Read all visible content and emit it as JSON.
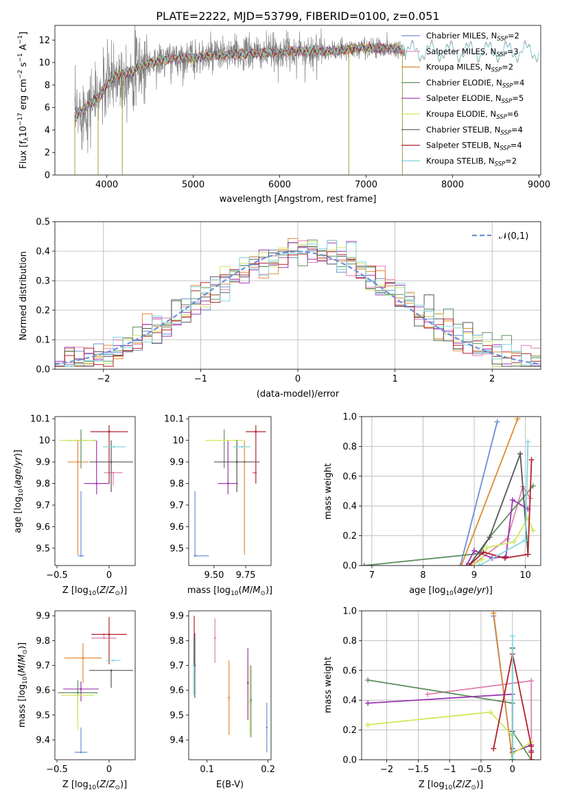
{
  "title": "PLATE=2222, MJD=53799, FIBERID=0100, z=0.051",
  "models": [
    {
      "key": "chabrier_miles",
      "label": "Chabrier MILES, N",
      "sub": "SSP",
      "suffix": "=2",
      "color": "#6a8fd6"
    },
    {
      "key": "salpeter_miles",
      "label": "Salpeter MILES, N",
      "sub": "SSP",
      "suffix": "=3",
      "color": "#e07fb0"
    },
    {
      "key": "kroupa_miles",
      "label": "Kroupa MILES, N",
      "sub": "SSP",
      "suffix": "=2",
      "color": "#e08a33"
    },
    {
      "key": "chabrier_elodie",
      "label": "Chabrier ELODIE, N",
      "sub": "SSP",
      "suffix": "=4",
      "color": "#5e8f5e"
    },
    {
      "key": "salpeter_elodie",
      "label": "Salpeter ELODIE, N",
      "sub": "SSP",
      "suffix": "=5",
      "color": "#9b35b0"
    },
    {
      "key": "kroupa_elodie",
      "label": "Kroupa ELODIE, N",
      "sub": "SSP",
      "suffix": "=6",
      "color": "#cfe85a"
    },
    {
      "key": "chabrier_stelib",
      "label": "Chabrier STELIB, N",
      "sub": "SSP",
      "suffix": "=4",
      "color": "#555555"
    },
    {
      "key": "salpeter_stelib",
      "label": "Salpeter STELIB, N",
      "sub": "SSP",
      "suffix": "=4",
      "color": "#b0202a"
    },
    {
      "key": "kroupa_stelib",
      "label": "Kroupa STELIB, N",
      "sub": "SSP",
      "suffix": "=2",
      "color": "#7fd6dc"
    }
  ],
  "chart_data": [
    {
      "id": "spectrum",
      "type": "line",
      "xlabel": "wavelength [Angstrom, rest frame]",
      "ylabel": "Flux [f",
      "xlim": [
        3400,
        9020
      ],
      "ylim": [
        0,
        13.3
      ],
      "xticks": [
        4000,
        5000,
        6000,
        7000,
        8000,
        9000
      ],
      "yticks": [
        0,
        2,
        4,
        6,
        8,
        10,
        12
      ],
      "grid": false,
      "legend": "right",
      "data_color": "#808080",
      "continuum": {
        "x": [
          3630,
          3700,
          3800,
          3900,
          4000,
          4100,
          4200,
          4300,
          4400,
          4500,
          4600,
          4700,
          4800,
          4900,
          5000,
          5200,
          5400,
          5600,
          5800,
          6000,
          6200,
          6400,
          6600,
          6800,
          7000,
          7200,
          7400,
          7600,
          7800,
          8000,
          8200,
          8400,
          8600,
          8800,
          9000
        ],
        "y": [
          5.2,
          5.6,
          6.3,
          6.9,
          8.0,
          8.8,
          9.0,
          9.2,
          9.6,
          10.0,
          10.1,
          10.3,
          10.4,
          10.4,
          10.4,
          10.6,
          10.7,
          10.8,
          10.8,
          10.9,
          11.0,
          11.0,
          11.0,
          11.2,
          11.3,
          11.3,
          11.2,
          11.2,
          11.2,
          11.1,
          11.1,
          11.0,
          11.0,
          11.0,
          11.0
        ]
      }
    },
    {
      "id": "residuals",
      "type": "bar",
      "xlabel": "(data-model)/error",
      "ylabel": "Normed distribution",
      "xlim": [
        -2.5,
        2.5
      ],
      "ylim": [
        0,
        0.5
      ],
      "xticks": [
        -2,
        -1,
        0,
        1,
        2
      ],
      "yticks": [
        0.0,
        0.1,
        0.2,
        0.3,
        0.4,
        0.5
      ],
      "grid": true,
      "legend": "top-right",
      "gauss_label": "(0,1)",
      "bin_width": 0.1
    },
    {
      "id": "age_vs_Z",
      "type": "scatter",
      "xlabel": "Z [log",
      "ylabel": "age  [log",
      "xlim": [
        -0.52,
        0.25
      ],
      "ylim": [
        9.42,
        10.11
      ],
      "xticks": [
        -0.5,
        0.0
      ],
      "yticks": [
        9.5,
        9.6,
        9.7,
        9.8,
        9.9,
        10.0,
        10.1
      ],
      "points": [
        {
          "model": "chabrier_miles",
          "x": -0.27,
          "y": 9.465,
          "xerr": 0.03,
          "yerr_lo": 0.0,
          "yerr_hi": 0.3
        },
        {
          "model": "salpeter_miles",
          "x": 0.04,
          "y": 9.85,
          "xerr": 0.09,
          "yerr_lo": 0.06,
          "yerr_hi": 0.0
        },
        {
          "model": "kroupa_miles",
          "x": -0.3,
          "y": 9.9,
          "xerr": 0.1,
          "yerr_lo": 0.43,
          "yerr_hi": 0.1
        },
        {
          "model": "chabrier_elodie",
          "x": -0.27,
          "y": 10.0,
          "xerr": 0.14,
          "yerr_lo": 0.13,
          "yerr_hi": 0.05
        },
        {
          "model": "salpeter_elodie",
          "x": -0.12,
          "y": 9.8,
          "xerr": 0.12,
          "yerr_lo": 0.05,
          "yerr_hi": 0.2
        },
        {
          "model": "kroupa_elodie",
          "x": -0.31,
          "y": 10.0,
          "xerr": 0.17,
          "yerr_lo": 0.0,
          "yerr_hi": 0.0
        },
        {
          "model": "chabrier_stelib",
          "x": 0.02,
          "y": 9.9,
          "xerr": 0.21,
          "yerr_lo": 0.14,
          "yerr_hi": 0.1
        },
        {
          "model": "salpeter_stelib",
          "x": 0.0,
          "y": 10.04,
          "xerr": 0.18,
          "yerr_lo": 0.24,
          "yerr_hi": 0.03
        },
        {
          "model": "kroupa_stelib",
          "x": 0.05,
          "y": 9.97,
          "xerr": 0.11,
          "yerr_lo": 0.0,
          "yerr_hi": 0.0
        }
      ]
    },
    {
      "id": "age_vs_mass",
      "type": "scatter",
      "xlabel": "mass [log",
      "ylabel": "",
      "xlim": [
        9.3,
        9.95
      ],
      "ylim": [
        9.42,
        10.11
      ],
      "xticks": [
        9.5,
        9.75
      ],
      "xtick_labels": [
        "9.50",
        "9.75"
      ],
      "yticks": [
        9.5,
        9.6,
        9.7,
        9.8,
        9.9,
        10.0,
        10.1
      ],
      "points": [
        {
          "model": "chabrier_miles",
          "x": 9.35,
          "y": 9.465,
          "xerr_lo": 0.01,
          "xerr_hi": 0.11,
          "yerr_lo": 0.0,
          "yerr_hi": 0.3
        },
        {
          "model": "salpeter_miles",
          "x": 9.82,
          "y": 9.85,
          "xerr": 0.02,
          "yerr_lo": 0.0,
          "yerr_hi": 0.0
        },
        {
          "model": "kroupa_miles",
          "x": 9.74,
          "y": 9.9,
          "xerr": 0.0,
          "yerr_lo": 0.43,
          "yerr_hi": 0.1
        },
        {
          "model": "chabrier_elodie",
          "x": 9.58,
          "y": 10.0,
          "xerr": 0.0,
          "yerr_lo": 0.13,
          "yerr_hi": 0.05
        },
        {
          "model": "salpeter_elodie",
          "x": 9.61,
          "y": 9.8,
          "xerr": 0.08,
          "yerr_lo": 0.05,
          "yerr_hi": 0.2
        },
        {
          "model": "kroupa_elodie",
          "x": 9.58,
          "y": 10.0,
          "xerr": 0.15,
          "yerr_lo": 0.0,
          "yerr_hi": 0.0
        },
        {
          "model": "chabrier_stelib",
          "x": 9.68,
          "y": 9.9,
          "xerr": 0.18,
          "yerr_lo": 0.14,
          "yerr_hi": 0.1
        },
        {
          "model": "salpeter_stelib",
          "x": 9.83,
          "y": 10.04,
          "xerr": 0.08,
          "yerr_lo": 0.24,
          "yerr_hi": 0.03
        },
        {
          "model": "kroupa_stelib",
          "x": 9.72,
          "y": 9.97,
          "xerr": 0.07,
          "yerr_lo": 0.0,
          "yerr_hi": 0.0
        }
      ]
    },
    {
      "id": "weight_vs_age",
      "type": "line",
      "xlabel": "age  [log",
      "ylabel": "mass weight",
      "xlim": [
        6.8,
        10.3
      ],
      "ylim": [
        0,
        1.0
      ],
      "xticks": [
        7,
        8,
        9,
        10
      ],
      "yticks": [
        0.0,
        0.2,
        0.4,
        0.6,
        0.8,
        1.0
      ],
      "grid": true,
      "series": [
        {
          "model": "chabrier_miles",
          "x": [
            8.73,
            9.45
          ],
          "y": [
            0.0,
            0.965
          ]
        },
        {
          "model": "salpeter_miles",
          "x": [
            8.95,
            9.65,
            9.95,
            10.1
          ],
          "y": [
            0.0,
            0.18,
            0.53,
            0.45
          ]
        },
        {
          "model": "kroupa_miles",
          "x": [
            8.75,
            9.85
          ],
          "y": [
            0.0,
            0.985
          ]
        },
        {
          "model": "chabrier_elodie",
          "x": [
            6.85,
            9.1,
            9.3,
            10.15
          ],
          "y": [
            0.0,
            0.08,
            0.19,
            0.535
          ]
        },
        {
          "model": "salpeter_elodie",
          "x": [
            8.85,
            9.0,
            9.35,
            9.62,
            9.75,
            10.05
          ],
          "y": [
            0.0,
            0.1,
            0.05,
            0.06,
            0.44,
            0.38
          ]
        },
        {
          "model": "kroupa_elodie",
          "x": [
            8.95,
            9.15,
            9.25,
            9.78,
            10.05,
            10.15
          ],
          "y": [
            0.0,
            0.04,
            0.12,
            0.16,
            0.32,
            0.235
          ]
        },
        {
          "model": "chabrier_stelib",
          "x": [
            8.9,
            9.3,
            9.9,
            10.05
          ],
          "y": [
            0.0,
            0.19,
            0.75,
            0.075
          ]
        },
        {
          "model": "salpeter_stelib",
          "x": [
            8.9,
            9.18,
            9.6,
            10.05,
            10.12
          ],
          "y": [
            0.0,
            0.09,
            0.05,
            0.075,
            0.71
          ]
        },
        {
          "model": "kroupa_stelib",
          "x": [
            9.1,
            10.0,
            10.05
          ],
          "y": [
            0.0,
            0.17,
            0.83
          ]
        }
      ]
    },
    {
      "id": "mass_vs_Z",
      "type": "scatter",
      "xlabel": "Z [log",
      "ylabel": "mass [log",
      "xlim": [
        -0.52,
        0.25
      ],
      "ylim": [
        9.32,
        9.92
      ],
      "xticks": [
        -0.5,
        0.0
      ],
      "yticks": [
        9.4,
        9.5,
        9.6,
        9.7,
        9.8,
        9.9
      ],
      "points": [
        {
          "model": "chabrier_miles",
          "x": -0.27,
          "y": 9.35,
          "xerr": 0.06,
          "yerr_lo": 0.0,
          "yerr_hi": 0.1
        },
        {
          "model": "salpeter_miles",
          "x": -0.05,
          "y": 9.81,
          "xerr": 0.12,
          "yerr_lo": 0.0,
          "yerr_hi": 0.02
        },
        {
          "model": "kroupa_miles",
          "x": -0.25,
          "y": 9.73,
          "xerr": 0.18,
          "yerr_lo": 0.1,
          "yerr_hi": 0.06
        },
        {
          "model": "chabrier_elodie",
          "x": -0.3,
          "y": 9.59,
          "xerr": 0.19,
          "yerr_lo": 0.1,
          "yerr_hi": 0.05
        },
        {
          "model": "salpeter_elodie",
          "x": -0.27,
          "y": 9.605,
          "xerr": 0.17,
          "yerr_lo": 0.05,
          "yerr_hi": 0.03
        },
        {
          "model": "kroupa_elodie",
          "x": -0.3,
          "y": 9.58,
          "xerr": 0.16,
          "yerr_lo": 0.14,
          "yerr_hi": 0.0
        },
        {
          "model": "chabrier_stelib",
          "x": 0.02,
          "y": 9.68,
          "xerr": 0.21,
          "yerr_lo": 0.07,
          "yerr_hi": 0.0
        },
        {
          "model": "salpeter_stelib",
          "x": 0.0,
          "y": 9.825,
          "xerr": 0.17,
          "yerr_lo": 0.12,
          "yerr_hi": 0.07
        },
        {
          "model": "kroupa_stelib",
          "x": 0.04,
          "y": 9.72,
          "xerr": 0.07,
          "yerr_lo": 0.0,
          "yerr_hi": 0.0
        }
      ]
    },
    {
      "id": "mass_vs_ebv",
      "type": "scatter",
      "xlabel": "E(B-V)",
      "ylabel": "",
      "xlim": [
        0.07,
        0.205
      ],
      "ylim": [
        9.32,
        9.92
      ],
      "xticks": [
        0.1,
        0.2
      ],
      "yticks": [
        9.4,
        9.5,
        9.6,
        9.7,
        9.8,
        9.9
      ],
      "points": [
        {
          "model": "chabrier_miles",
          "x": 0.198,
          "y": 9.45,
          "yerr_lo": 0.1,
          "yerr_hi": 0.1
        },
        {
          "model": "salpeter_miles",
          "x": 0.113,
          "y": 9.81,
          "yerr_lo": 0.1,
          "yerr_hi": 0.08
        },
        {
          "model": "kroupa_miles",
          "x": 0.136,
          "y": 9.57,
          "yerr_lo": 0.15,
          "yerr_hi": 0.15
        },
        {
          "model": "chabrier_elodie",
          "x": 0.172,
          "y": 9.56,
          "yerr_lo": 0.15,
          "yerr_hi": 0.14
        },
        {
          "model": "salpeter_elodie",
          "x": 0.167,
          "y": 9.63,
          "yerr_lo": 0.15,
          "yerr_hi": 0.14
        },
        {
          "model": "kroupa_elodie",
          "x": 0.17,
          "y": 9.55,
          "yerr_lo": 0.13,
          "yerr_hi": 0.15
        },
        {
          "model": "chabrier_stelib",
          "x": 0.08,
          "y": 9.7,
          "yerr_lo": 0.13,
          "yerr_hi": 0.13
        },
        {
          "model": "salpeter_stelib",
          "x": 0.079,
          "y": 9.8,
          "yerr_lo": 0.1,
          "yerr_hi": 0.1
        },
        {
          "model": "kroupa_stelib",
          "x": 0.078,
          "y": 9.7,
          "yerr_lo": 0.12,
          "yerr_hi": 0.11
        }
      ]
    },
    {
      "id": "weight_vs_Z",
      "type": "line",
      "xlabel": "Z [log",
      "ylabel": "mass weight",
      "xlim": [
        -2.4,
        0.45
      ],
      "ylim": [
        0,
        1.0
      ],
      "xticks": [
        -2.0,
        -1.5,
        -1.0,
        -0.5,
        0.0
      ],
      "yticks": [
        0.0,
        0.2,
        0.4,
        0.6,
        0.8,
        1.0
      ],
      "grid": true,
      "series": [
        {
          "model": "chabrier_miles",
          "x": [
            -0.3,
            0.0
          ],
          "y": [
            0.965,
            0.0
          ]
        },
        {
          "model": "salpeter_miles",
          "x": [
            -1.35,
            0.3,
            0.3
          ],
          "y": [
            0.44,
            0.53,
            0.0
          ]
        },
        {
          "model": "kroupa_miles",
          "x": [
            0.0,
            -0.3
          ],
          "y": [
            0.0,
            0.985
          ]
        },
        {
          "model": "chabrier_elodie",
          "x": [
            -2.3,
            0.0,
            0.0,
            0.0,
            0.3
          ],
          "y": [
            0.535,
            0.38,
            0.0,
            0.19,
            0.0
          ]
        },
        {
          "model": "salpeter_elodie",
          "x": [
            -2.3,
            0.0,
            0.0,
            0.3,
            0.3
          ],
          "y": [
            0.38,
            0.44,
            0.05,
            0.1,
            0.06
          ]
        },
        {
          "model": "kroupa_elodie",
          "x": [
            -2.3,
            -0.35,
            0.0,
            0.0,
            0.3,
            0.3
          ],
          "y": [
            0.235,
            0.32,
            0.16,
            0.04,
            0.12,
            0.0
          ]
        },
        {
          "model": "chabrier_stelib",
          "x": [
            0.0,
            0.0,
            0.0,
            0.0
          ],
          "y": [
            0.75,
            0.075,
            0.19,
            0.0
          ]
        },
        {
          "model": "salpeter_stelib",
          "x": [
            -0.3,
            0.0,
            0.3,
            0.3,
            0.3
          ],
          "y": [
            0.075,
            0.71,
            0.09,
            0.05,
            0.0
          ]
        },
        {
          "model": "kroupa_stelib",
          "x": [
            0.0,
            0.0,
            0.0
          ],
          "y": [
            0.83,
            0.17,
            0.0
          ]
        }
      ]
    }
  ]
}
